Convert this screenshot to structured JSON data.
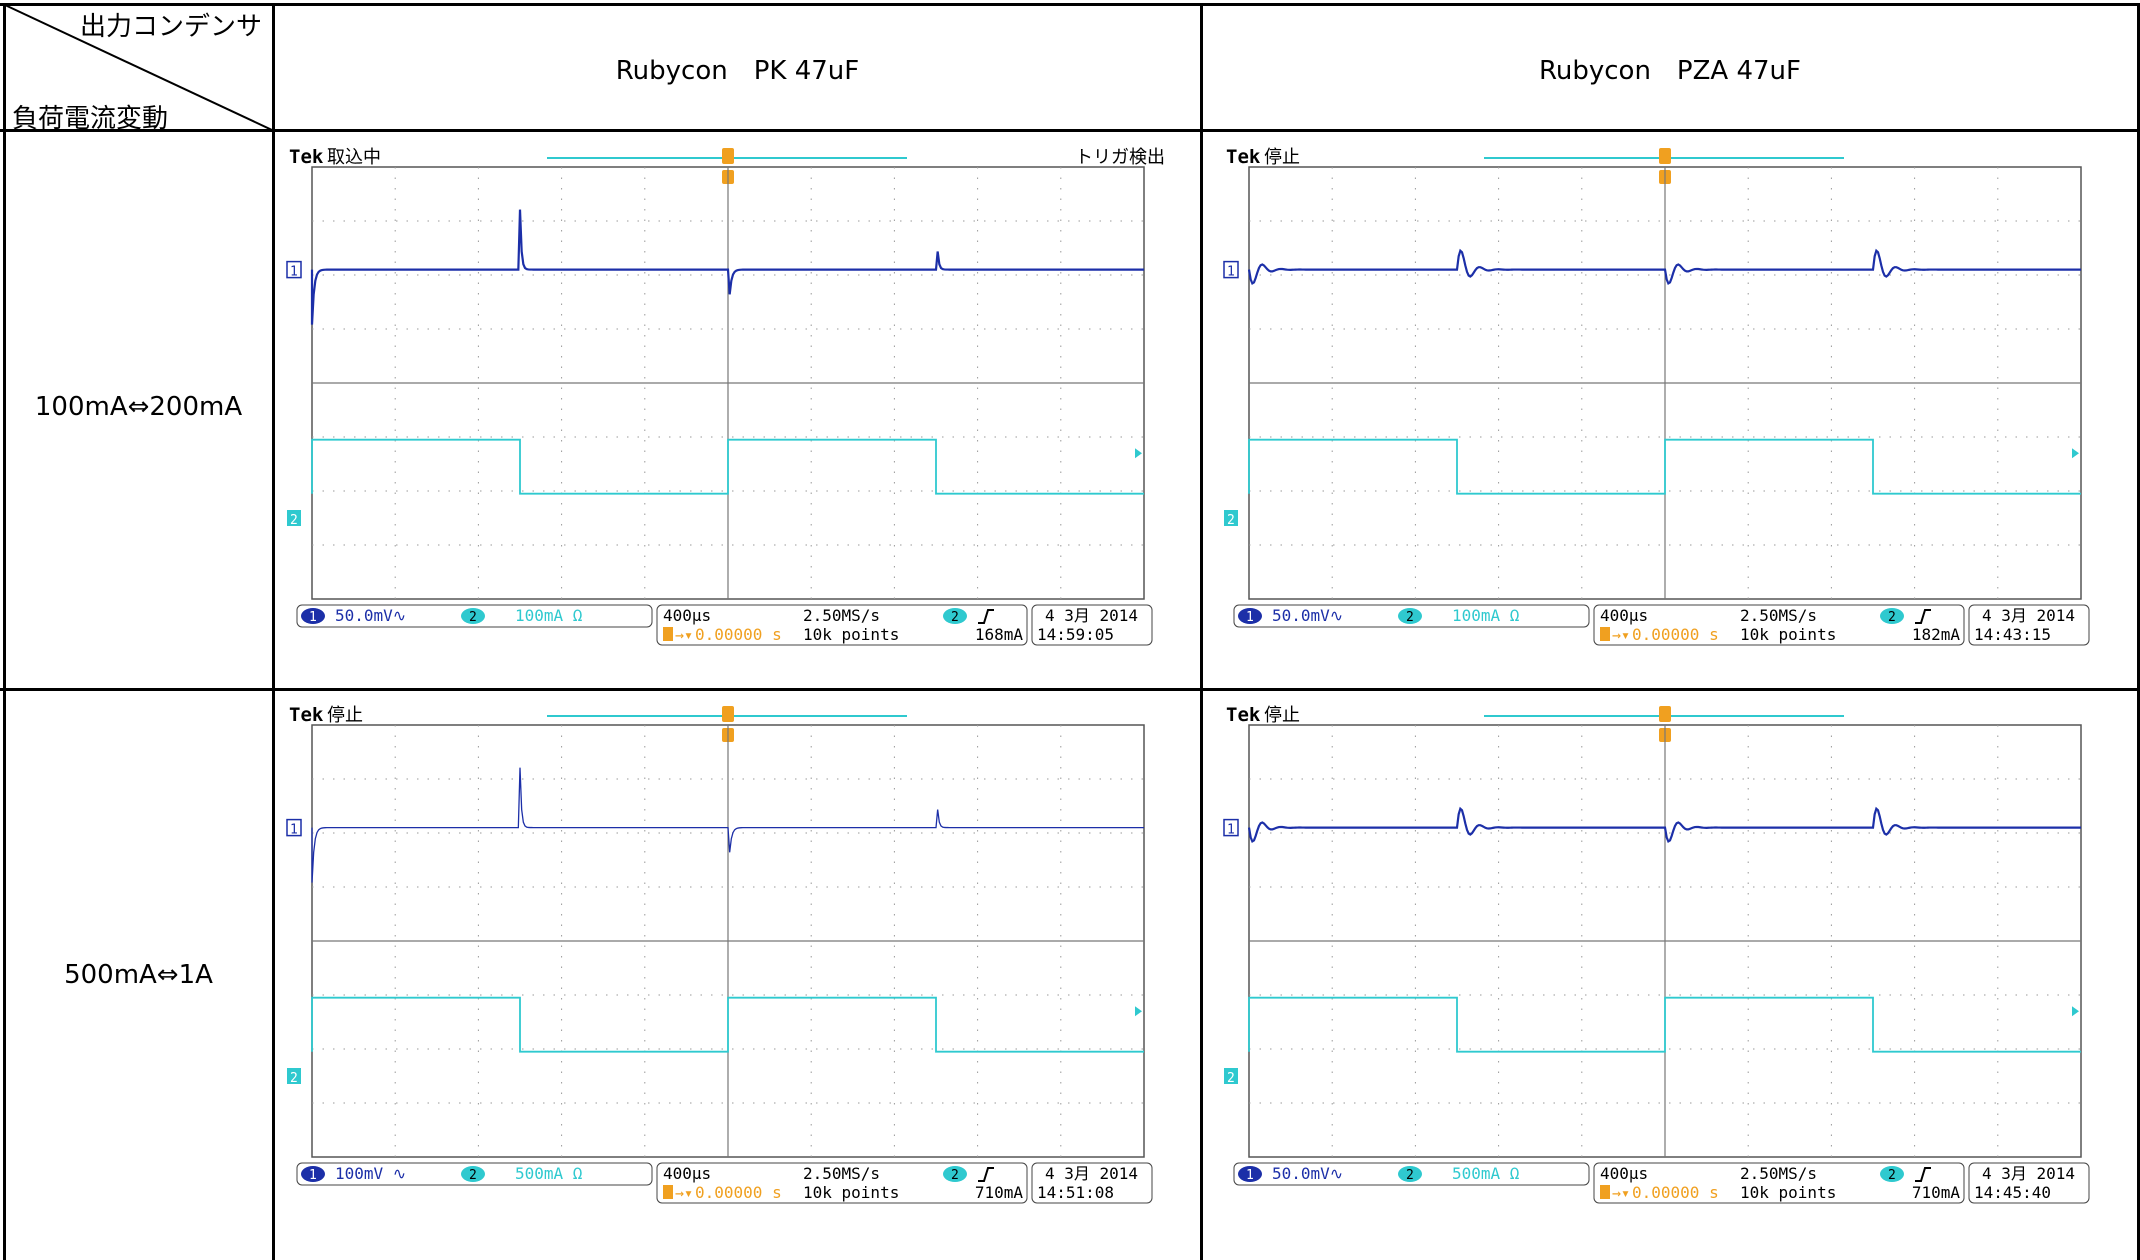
{
  "corner": {
    "top": "出力コンデンサ",
    "bottom": "負荷電流変動"
  },
  "columns": [
    "Rubycon　PK 47uF",
    "Rubycon　PZA 47uF"
  ],
  "rows": [
    "100mA⇔200mA",
    "500mA⇔1A"
  ],
  "scopes": [
    {
      "id": "r1c1",
      "brand": "Tek",
      "state": "取込中",
      "trigger_status": "トリガ検出",
      "ch1_label": "1",
      "ch2_label": "2",
      "ch1_scale": "50.0mV∿",
      "ch2_scale": "100mA Ω",
      "timebase": "400µs",
      "sample_rate": "2.50MS/s",
      "points": "10k points",
      "trig_pos": "0.00000 s",
      "trig_level": "168mA",
      "date": "4 3月  2014",
      "time": "14:59:05",
      "ch1_color": "#1c2fa8",
      "ch2_color": "#2fc9cf",
      "ringing": false
    },
    {
      "id": "r1c2",
      "brand": "Tek",
      "state": "停止",
      "trigger_status": "",
      "ch1_label": "1",
      "ch2_label": "2",
      "ch1_scale": "50.0mV∿",
      "ch2_scale": "100mA Ω",
      "timebase": "400µs",
      "sample_rate": "2.50MS/s",
      "points": "10k points",
      "trig_pos": "0.00000 s",
      "trig_level": "182mA",
      "date": "4 3月  2014",
      "time": "14:43:15",
      "ch1_color": "#1c2fa8",
      "ch2_color": "#2fc9cf",
      "ringing": true
    },
    {
      "id": "r2c1",
      "brand": "Tek",
      "state": "停止",
      "trigger_status": "",
      "ch1_label": "1",
      "ch2_label": "2",
      "ch1_scale": "100mV ∿",
      "ch2_scale": "500mA Ω",
      "timebase": "400µs",
      "sample_rate": "2.50MS/s",
      "points": "10k points",
      "trig_pos": "0.00000 s",
      "trig_level": "710mA",
      "date": "4 3月  2014",
      "time": "14:51:08",
      "ch1_color": "#1c2fa8",
      "ch2_color": "#2fc9cf",
      "ringing": false
    },
    {
      "id": "r2c2",
      "brand": "Tek",
      "state": "停止",
      "trigger_status": "",
      "ch1_label": "1",
      "ch2_label": "2",
      "ch1_scale": "50.0mV∿",
      "ch2_scale": "500mA Ω",
      "timebase": "400µs",
      "sample_rate": "2.50MS/s",
      "points": "10k points",
      "trig_pos": "0.00000 s",
      "trig_level": "710mA",
      "date": "4 3月  2014",
      "time": "14:45:40",
      "ch1_color": "#1c2fa8",
      "ch2_color": "#2fc9cf",
      "ringing": true
    }
  ],
  "accent": {
    "trigger_orange": "#f0a020",
    "grid": "#333333"
  }
}
